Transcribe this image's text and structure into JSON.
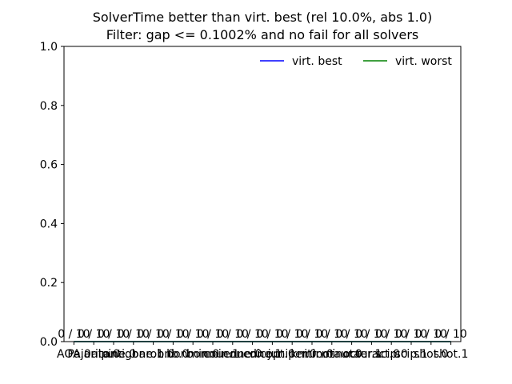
{
  "chart_data": {
    "type": "line",
    "title": "SolverTime better than virt. best (rel 10.0%, abs 1.0)",
    "subtitle": "Filter: gap <= 0.1002% and no fail for all solvers",
    "xlabel": "",
    "ylabel": "",
    "ylim": [
      0.0,
      1.0
    ],
    "yticks": [
      "0.0",
      "0.2",
      "0.4",
      "0.6",
      "0.8",
      "1.0"
    ],
    "categories": [
      "AOA.0",
      "Pajarito.0",
      "alpine.0",
      "antigone.1",
      "baron.0",
      "bnb.0",
      "bonmin.0",
      "bonmin.1",
      "couenne.0",
      "couenne.1",
      "dicopt.0",
      "juniper.0",
      "knitro.0",
      "minotaur.0",
      "minotaur.1",
      "octeract.0",
      "scip.0",
      "scip.1",
      "shot.0",
      "shot.1"
    ],
    "data_labels": [
      "0 / 10",
      "0 / 10",
      "0 / 10",
      "0 / 10",
      "0 / 10",
      "0 / 10",
      "0 / 10",
      "0 / 10",
      "0 / 10",
      "0 / 10",
      "0 / 10",
      "0 / 10",
      "0 / 10",
      "0 / 10",
      "0 / 10",
      "0 / 10",
      "0 / 10",
      "0 / 10",
      "0 / 10",
      "0 / 10"
    ],
    "series": [
      {
        "name": "virt. best",
        "color": "#0000ff",
        "values": [
          0,
          0,
          0,
          0,
          0,
          0,
          0,
          0,
          0,
          0,
          0,
          0,
          0,
          0,
          0,
          0,
          0,
          0,
          0,
          0
        ]
      },
      {
        "name": "virt. worst",
        "color": "#008000",
        "values": [
          0,
          0,
          0,
          0,
          0,
          0,
          0,
          0,
          0,
          0,
          0,
          0,
          0,
          0,
          0,
          0,
          0,
          0,
          0,
          0
        ]
      }
    ],
    "legend_position": "top-right",
    "grid": false
  }
}
